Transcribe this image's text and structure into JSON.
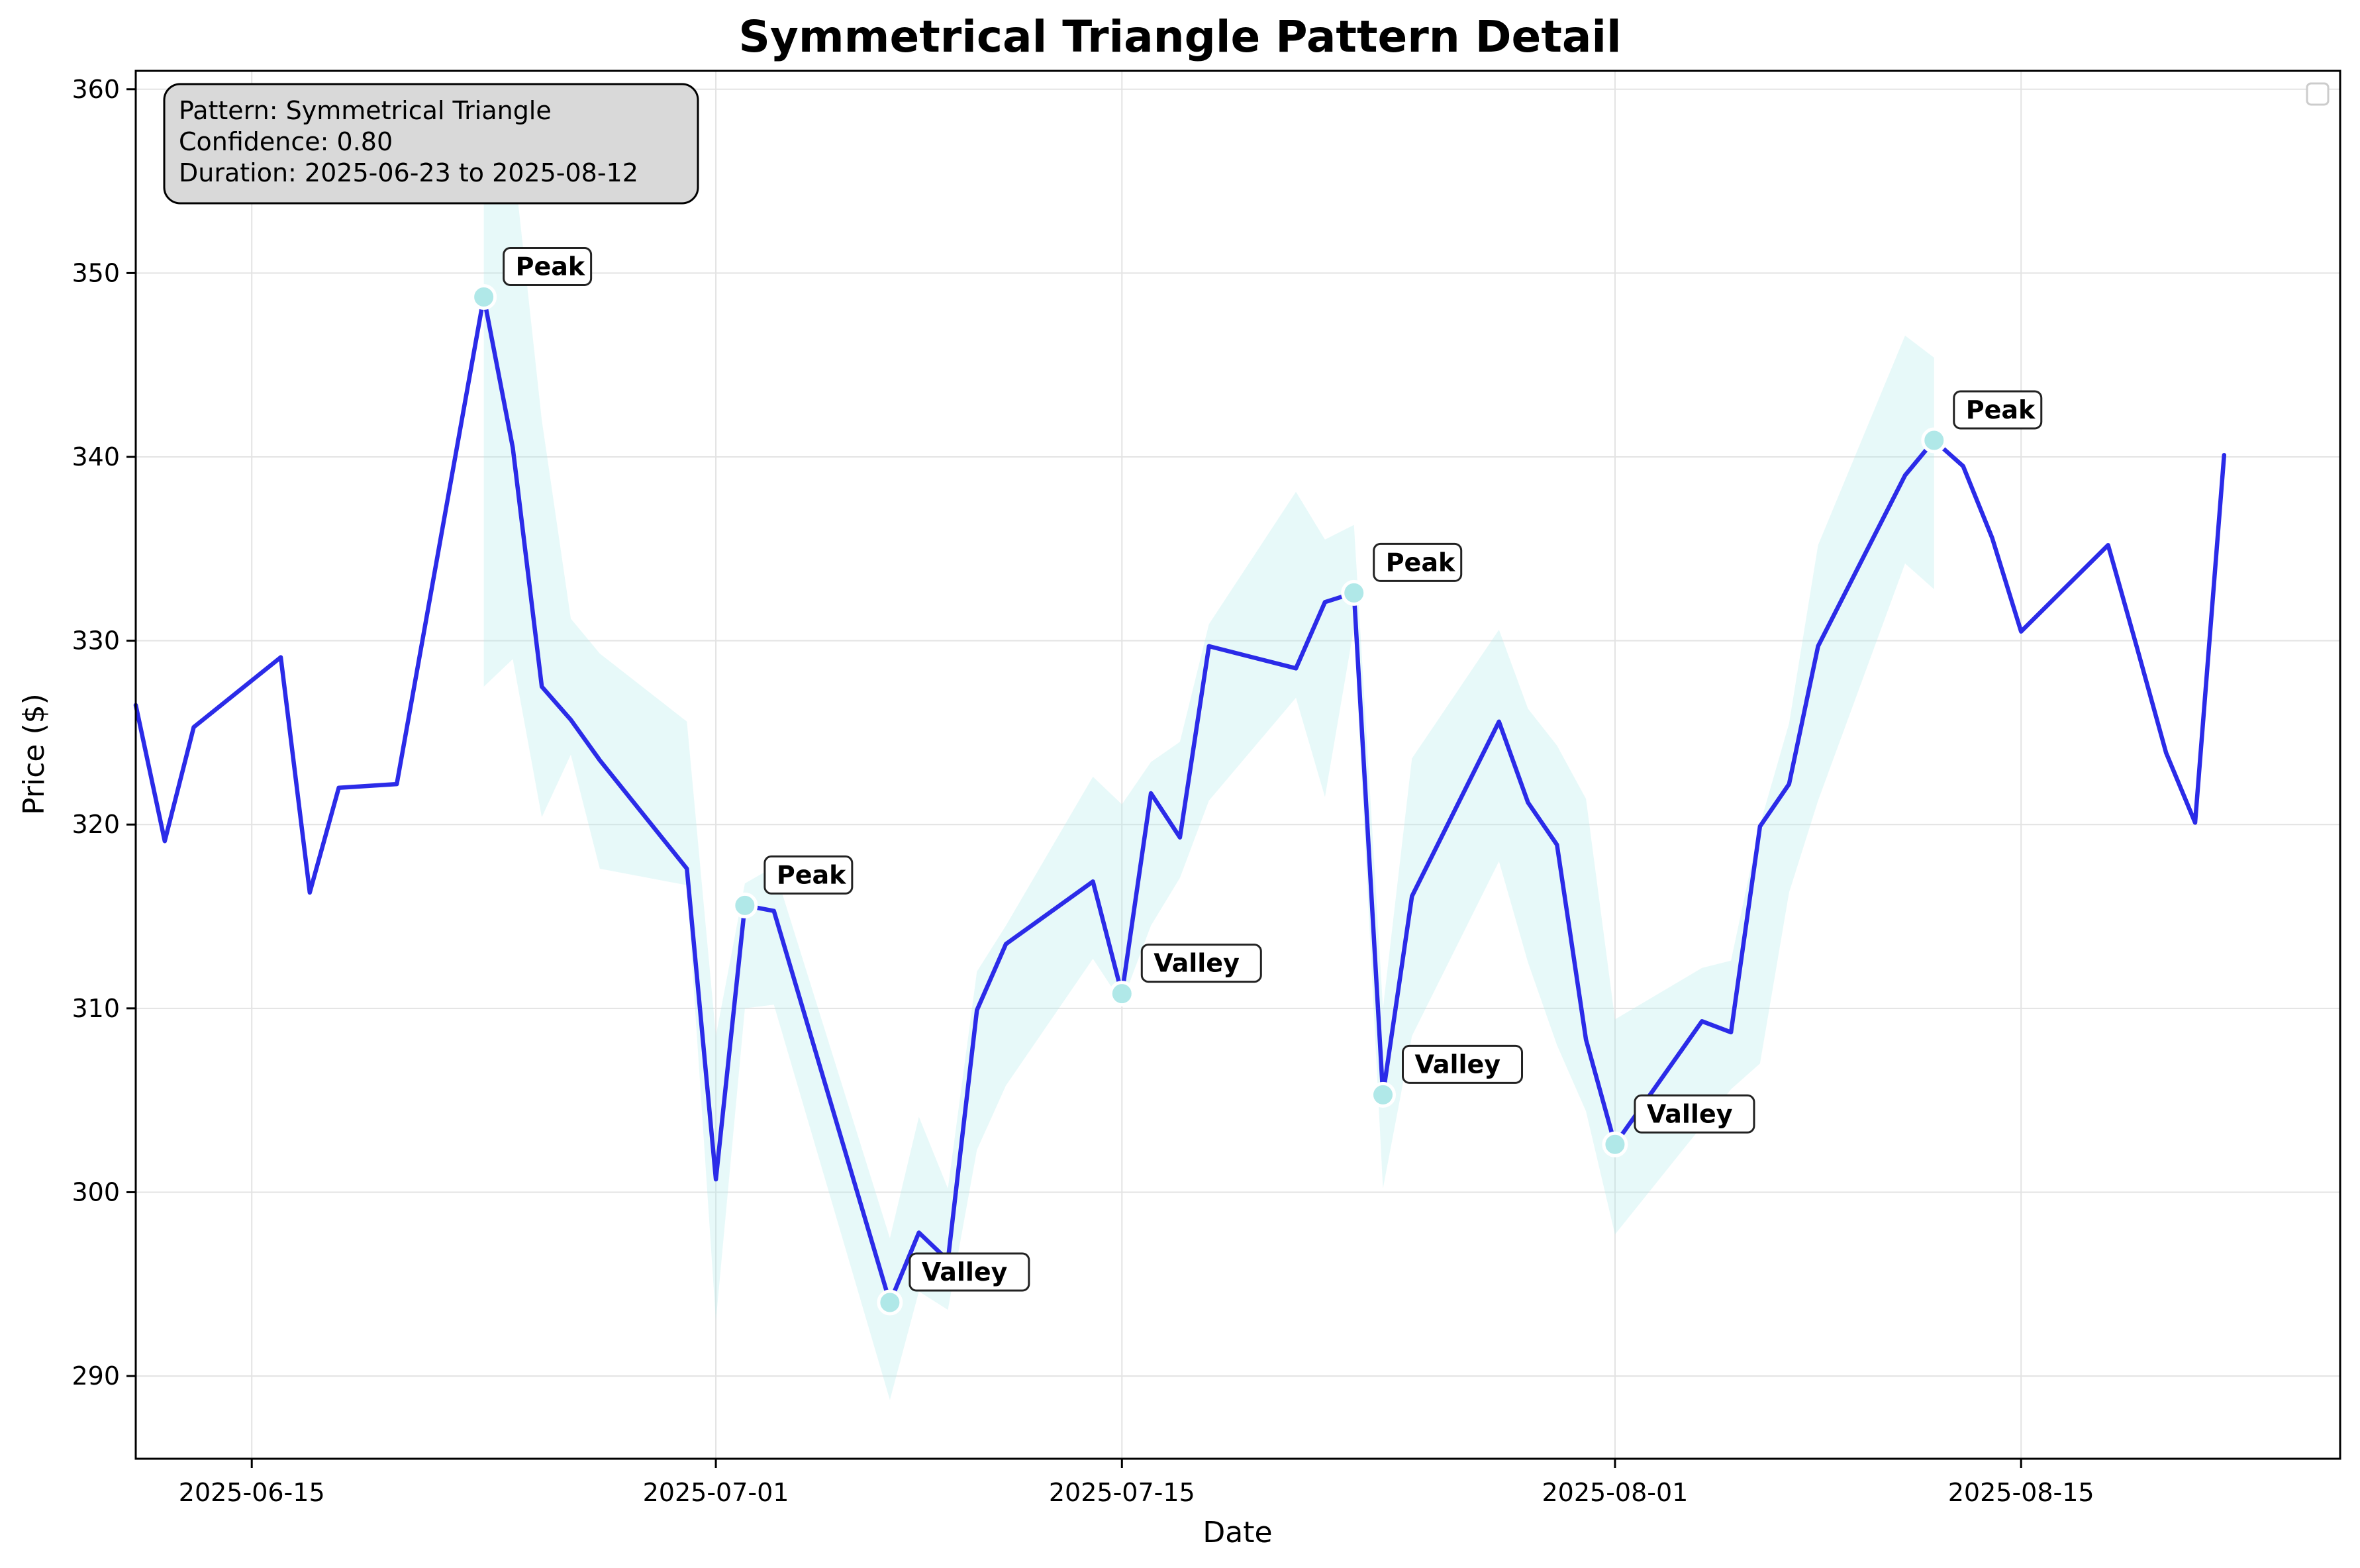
{
  "chart_data": {
    "type": "line",
    "title": "Symmetrical Triangle Pattern Detail",
    "xlabel": "Date",
    "ylabel": "Price ($)",
    "x_range": [
      "2025-06-11",
      "2025-08-26"
    ],
    "ylim": [
      285.5,
      361
    ],
    "grid": true,
    "legend": "top-right (empty)",
    "colors": {
      "line": "#2b2be8",
      "band": "#b0ecec",
      "marker": "#b0e8e8",
      "marker_edge": "#ffffff",
      "info_box": "#d9d9d9",
      "annotation_box": "#ffffff"
    },
    "x_ticks": [
      "2025-06-15",
      "2025-07-01",
      "2025-07-15",
      "2025-08-01",
      "2025-08-15"
    ],
    "y_ticks": [
      290,
      300,
      310,
      320,
      330,
      340,
      350,
      360
    ],
    "series": [
      {
        "points": [
          [
            "2025-06-11",
            326.5
          ],
          [
            "2025-06-12",
            319.1
          ],
          [
            "2025-06-13",
            325.3
          ],
          [
            "2025-06-16",
            329.1
          ],
          [
            "2025-06-17",
            316.3
          ],
          [
            "2025-06-18",
            322.0
          ],
          [
            "2025-06-20",
            322.2
          ],
          [
            "2025-06-23",
            348.7
          ],
          [
            "2025-06-24",
            340.5
          ],
          [
            "2025-06-25",
            327.5
          ],
          [
            "2025-06-26",
            325.7
          ],
          [
            "2025-06-27",
            323.5
          ],
          [
            "2025-06-30",
            317.6
          ],
          [
            "2025-07-01",
            300.7
          ],
          [
            "2025-07-02",
            315.6
          ],
          [
            "2025-07-03",
            315.3
          ],
          [
            "2025-07-07",
            294.0
          ],
          [
            "2025-07-08",
            297.8
          ],
          [
            "2025-07-09",
            296.3
          ],
          [
            "2025-07-10",
            309.9
          ],
          [
            "2025-07-11",
            313.5
          ],
          [
            "2025-07-14",
            316.9
          ],
          [
            "2025-07-15",
            310.8
          ],
          [
            "2025-07-16",
            321.7
          ],
          [
            "2025-07-17",
            319.3
          ],
          [
            "2025-07-18",
            329.7
          ],
          [
            "2025-07-21",
            328.5
          ],
          [
            "2025-07-22",
            332.1
          ],
          [
            "2025-07-23",
            332.6
          ],
          [
            "2025-07-24",
            305.3
          ],
          [
            "2025-07-25",
            316.1
          ],
          [
            "2025-07-28",
            325.6
          ],
          [
            "2025-07-29",
            321.2
          ],
          [
            "2025-07-30",
            318.9
          ],
          [
            "2025-07-31",
            308.3
          ],
          [
            "2025-08-01",
            302.6
          ],
          [
            "2025-08-04",
            309.3
          ],
          [
            "2025-08-05",
            308.7
          ],
          [
            "2025-08-06",
            319.9
          ],
          [
            "2025-08-07",
            322.2
          ],
          [
            "2025-08-08",
            329.7
          ],
          [
            "2025-08-11",
            339.0
          ],
          [
            "2025-08-12",
            340.9
          ],
          [
            "2025-08-13",
            339.5
          ],
          [
            "2025-08-14",
            335.6
          ],
          [
            "2025-08-15",
            330.5
          ],
          [
            "2025-08-18",
            335.2
          ],
          [
            "2025-08-19",
            329.6
          ],
          [
            "2025-08-20",
            323.9
          ],
          [
            "2025-08-21",
            320.1
          ],
          [
            "2025-08-22",
            340.1
          ]
        ]
      }
    ],
    "band": {
      "points": [
        [
          "2025-06-23",
          327.5,
          357.0
        ],
        [
          "2025-06-24",
          329.0,
          356.5
        ],
        [
          "2025-06-25",
          320.4,
          342.0
        ],
        [
          "2025-06-26",
          323.8,
          331.2
        ],
        [
          "2025-06-27",
          317.6,
          329.3
        ],
        [
          "2025-06-30",
          316.7,
          325.6
        ],
        [
          "2025-07-01",
          293.0,
          308.5
        ],
        [
          "2025-07-02",
          310.0,
          316.8
        ],
        [
          "2025-07-03",
          310.2,
          317.7
        ],
        [
          "2025-07-07",
          288.7,
          297.5
        ],
        [
          "2025-07-08",
          294.6,
          304.1
        ],
        [
          "2025-07-09",
          293.6,
          300.2
        ],
        [
          "2025-07-10",
          302.3,
          312.0
        ],
        [
          "2025-07-11",
          305.8,
          314.5
        ],
        [
          "2025-07-14",
          312.7,
          322.6
        ],
        [
          "2025-07-15",
          310.3,
          321.1
        ],
        [
          "2025-07-16",
          314.5,
          323.4
        ],
        [
          "2025-07-17",
          317.1,
          324.5
        ],
        [
          "2025-07-18",
          321.3,
          330.9
        ],
        [
          "2025-07-21",
          326.9,
          338.1
        ],
        [
          "2025-07-22",
          321.5,
          335.5
        ],
        [
          "2025-07-23",
          330.7,
          336.3
        ],
        [
          "2025-07-24",
          300.2,
          310.0
        ],
        [
          "2025-07-25",
          308.5,
          323.6
        ],
        [
          "2025-07-28",
          318.0,
          330.6
        ],
        [
          "2025-07-29",
          312.5,
          326.3
        ],
        [
          "2025-07-30",
          308.0,
          324.3
        ],
        [
          "2025-07-31",
          304.4,
          321.4
        ],
        [
          "2025-08-01",
          297.7,
          309.4
        ],
        [
          "2025-08-04",
          303.6,
          312.2
        ],
        [
          "2025-08-05",
          305.6,
          312.6
        ],
        [
          "2025-08-06",
          307.0,
          320.0
        ],
        [
          "2025-08-07",
          316.3,
          325.5
        ],
        [
          "2025-08-08",
          321.3,
          335.2
        ],
        [
          "2025-08-11",
          334.2,
          346.6
        ],
        [
          "2025-08-12",
          332.8,
          345.4
        ]
      ]
    },
    "annotations": [
      {
        "label": "Peak",
        "date": "2025-06-23",
        "value": 348.7
      },
      {
        "label": "Peak",
        "date": "2025-07-02",
        "value": 315.6
      },
      {
        "label": "Valley",
        "date": "2025-07-07",
        "value": 294.0
      },
      {
        "label": "Valley",
        "date": "2025-07-15",
        "value": 310.8
      },
      {
        "label": "Peak",
        "date": "2025-07-23",
        "value": 332.6
      },
      {
        "label": "Valley",
        "date": "2025-07-24",
        "value": 305.3
      },
      {
        "label": "Valley",
        "date": "2025-08-01",
        "value": 302.6
      },
      {
        "label": "Peak",
        "date": "2025-08-12",
        "value": 340.9
      }
    ],
    "info_box": {
      "lines": [
        "Pattern: Symmetrical Triangle",
        "Confidence: 0.80",
        "Duration: 2025-06-23 to 2025-08-12"
      ]
    }
  }
}
